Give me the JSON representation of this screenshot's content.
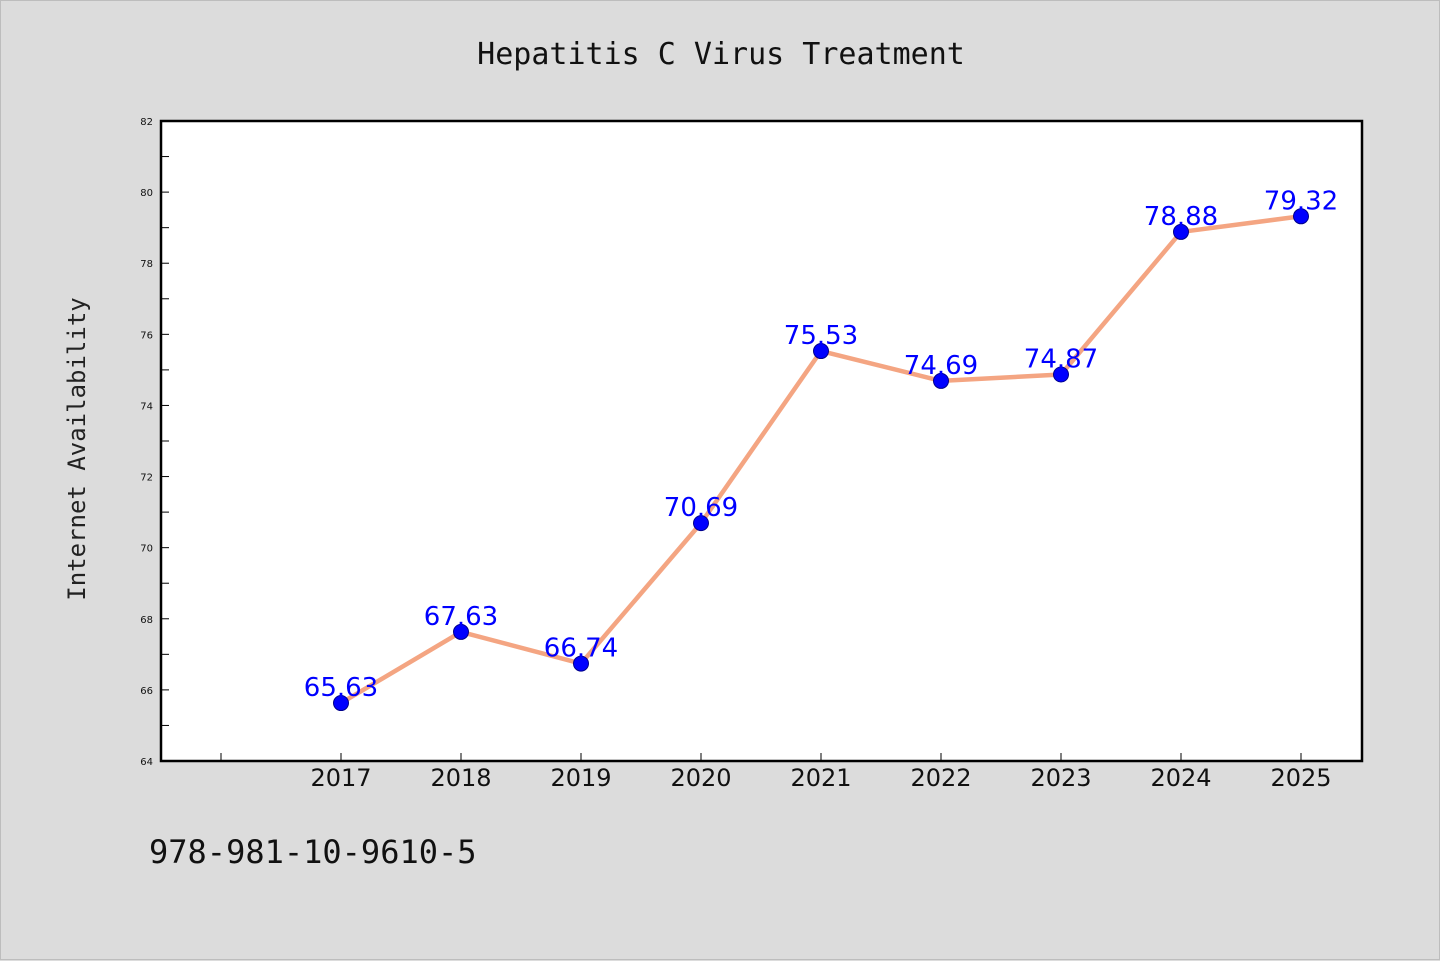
{
  "chart_data": {
    "type": "line",
    "title": "Hepatitis C Virus Treatment",
    "xlabel": "",
    "ylabel": "Internet Availability",
    "categories": [
      "2017",
      "2018",
      "2019",
      "2020",
      "2021",
      "2022",
      "2023",
      "2024",
      "2025"
    ],
    "values": [
      65.63,
      67.63,
      66.74,
      70.69,
      75.53,
      74.69,
      74.87,
      78.88,
      79.32
    ],
    "data_labels": [
      "65.63",
      "67.63",
      "66.74",
      "70.69",
      "75.53",
      "74.69",
      "74.87",
      "78.88",
      "79.32"
    ],
    "ylim": [
      64,
      82
    ],
    "yticks": [
      64,
      66,
      68,
      70,
      72,
      74,
      76,
      78,
      80,
      82
    ],
    "grid": false,
    "legend": "none",
    "line_color": "#f4a582",
    "marker_color": "#0000ff",
    "label_color": "#0000ff"
  },
  "footer_text": "978-981-10-9610-5"
}
